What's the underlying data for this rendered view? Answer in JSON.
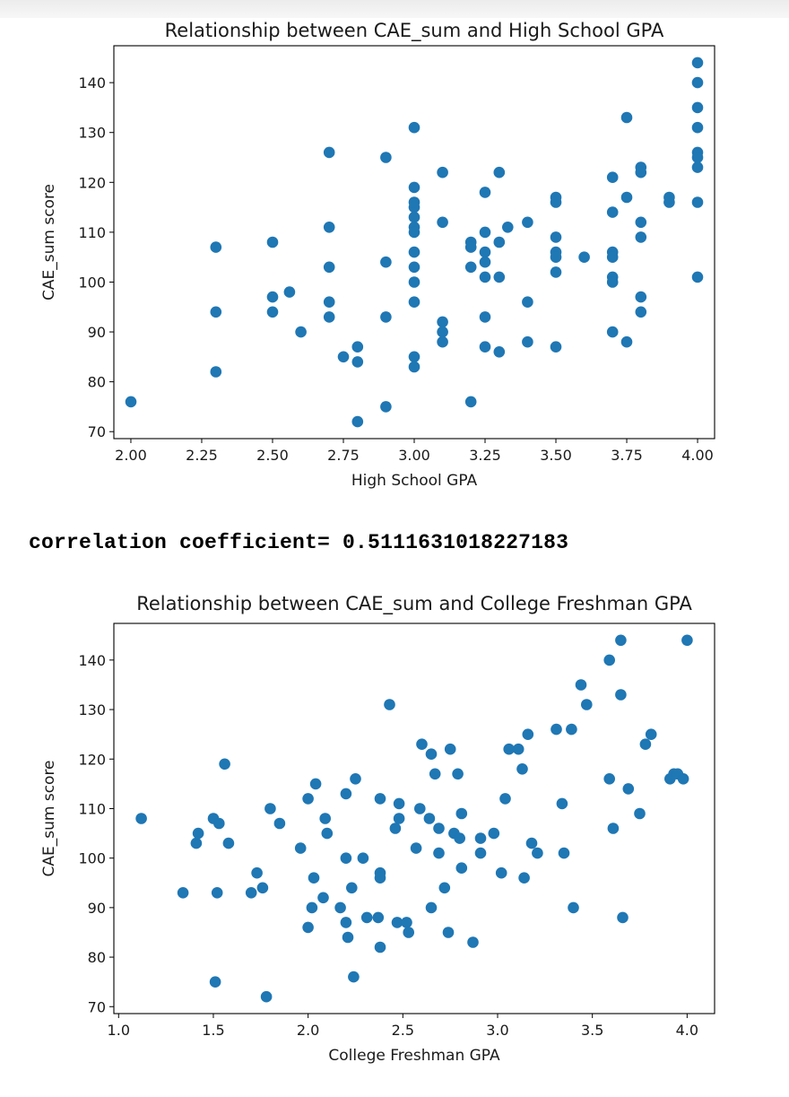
{
  "output_text": "correlation coefficient= 0.5111631018227183",
  "chart_data": [
    {
      "type": "scatter",
      "title": "Relationship between CAE_sum and High School GPA",
      "xlabel": "High School GPA",
      "ylabel": "CAE_sum score",
      "xlim": [
        1.94,
        4.06
      ],
      "ylim": [
        68.6,
        147.4
      ],
      "xticks": [
        2.0,
        2.25,
        2.5,
        2.75,
        3.0,
        3.25,
        3.5,
        3.75,
        4.0
      ],
      "xtick_labels": [
        "2.00",
        "2.25",
        "2.50",
        "2.75",
        "3.00",
        "3.25",
        "3.50",
        "3.75",
        "4.00"
      ],
      "yticks": [
        70,
        80,
        90,
        100,
        110,
        120,
        130,
        140
      ],
      "ytick_labels": [
        "70",
        "80",
        "90",
        "100",
        "110",
        "120",
        "130",
        "140"
      ],
      "grid": false,
      "marker_color": "#1f77b4",
      "points": [
        [
          2.0,
          76
        ],
        [
          2.3,
          107
        ],
        [
          2.3,
          94
        ],
        [
          2.3,
          82
        ],
        [
          2.5,
          108
        ],
        [
          2.5,
          97
        ],
        [
          2.5,
          94
        ],
        [
          2.56,
          98
        ],
        [
          2.6,
          90
        ],
        [
          2.7,
          126
        ],
        [
          2.7,
          111
        ],
        [
          2.7,
          103
        ],
        [
          2.7,
          96
        ],
        [
          2.7,
          93
        ],
        [
          2.75,
          85
        ],
        [
          2.8,
          87
        ],
        [
          2.8,
          84
        ],
        [
          2.8,
          72
        ],
        [
          2.9,
          125
        ],
        [
          2.9,
          104
        ],
        [
          2.9,
          93
        ],
        [
          2.9,
          75
        ],
        [
          3.0,
          131
        ],
        [
          3.0,
          119
        ],
        [
          3.0,
          116
        ],
        [
          3.0,
          115
        ],
        [
          3.0,
          113
        ],
        [
          3.0,
          111
        ],
        [
          3.0,
          110
        ],
        [
          3.0,
          106
        ],
        [
          3.0,
          103
        ],
        [
          3.0,
          100
        ],
        [
          3.0,
          96
        ],
        [
          3.0,
          85
        ],
        [
          3.0,
          83
        ],
        [
          3.1,
          122
        ],
        [
          3.1,
          112
        ],
        [
          3.1,
          92
        ],
        [
          3.1,
          90
        ],
        [
          3.1,
          88
        ],
        [
          3.2,
          108
        ],
        [
          3.2,
          107
        ],
        [
          3.2,
          103
        ],
        [
          3.2,
          76
        ],
        [
          3.25,
          118
        ],
        [
          3.25,
          110
        ],
        [
          3.25,
          106
        ],
        [
          3.25,
          104
        ],
        [
          3.25,
          101
        ],
        [
          3.25,
          93
        ],
        [
          3.25,
          87
        ],
        [
          3.3,
          122
        ],
        [
          3.3,
          108
        ],
        [
          3.3,
          101
        ],
        [
          3.3,
          86
        ],
        [
          3.33,
          111
        ],
        [
          3.4,
          112
        ],
        [
          3.4,
          96
        ],
        [
          3.4,
          88
        ],
        [
          3.5,
          117
        ],
        [
          3.5,
          116
        ],
        [
          3.5,
          109
        ],
        [
          3.5,
          106
        ],
        [
          3.5,
          105
        ],
        [
          3.5,
          102
        ],
        [
          3.5,
          87
        ],
        [
          3.6,
          105
        ],
        [
          3.7,
          121
        ],
        [
          3.7,
          114
        ],
        [
          3.7,
          106
        ],
        [
          3.7,
          105
        ],
        [
          3.7,
          101
        ],
        [
          3.7,
          100
        ],
        [
          3.7,
          90
        ],
        [
          3.75,
          133
        ],
        [
          3.75,
          117
        ],
        [
          3.75,
          88
        ],
        [
          3.8,
          123
        ],
        [
          3.8,
          122
        ],
        [
          3.8,
          112
        ],
        [
          3.8,
          109
        ],
        [
          3.8,
          97
        ],
        [
          3.8,
          94
        ],
        [
          3.9,
          117
        ],
        [
          3.9,
          116
        ],
        [
          4.0,
          144
        ],
        [
          4.0,
          140
        ],
        [
          4.0,
          135
        ],
        [
          4.0,
          131
        ],
        [
          4.0,
          126
        ],
        [
          4.0,
          125
        ],
        [
          4.0,
          123
        ],
        [
          4.0,
          116
        ],
        [
          4.0,
          101
        ]
      ]
    },
    {
      "type": "scatter",
      "title": "Relationship between CAE_sum and College Freshman GPA",
      "xlabel": "College Freshman GPA",
      "ylabel": "CAE_sum score",
      "xlim": [
        0.975,
        4.145
      ],
      "ylim": [
        68.6,
        147.4
      ],
      "xticks": [
        1.0,
        1.5,
        2.0,
        2.5,
        3.0,
        3.5,
        4.0
      ],
      "xtick_labels": [
        "1.0",
        "1.5",
        "2.0",
        "2.5",
        "3.0",
        "3.5",
        "4.0"
      ],
      "yticks": [
        70,
        80,
        90,
        100,
        110,
        120,
        130,
        140
      ],
      "ytick_labels": [
        "70",
        "80",
        "90",
        "100",
        "110",
        "120",
        "130",
        "140"
      ],
      "grid": false,
      "marker_color": "#1f77b4",
      "points": [
        [
          1.12,
          108
        ],
        [
          1.34,
          93
        ],
        [
          1.41,
          103
        ],
        [
          1.42,
          105
        ],
        [
          1.5,
          108
        ],
        [
          1.51,
          75
        ],
        [
          1.52,
          93
        ],
        [
          1.53,
          107
        ],
        [
          1.56,
          119
        ],
        [
          1.58,
          103
        ],
        [
          1.7,
          93
        ],
        [
          1.73,
          97
        ],
        [
          1.76,
          94
        ],
        [
          1.78,
          72
        ],
        [
          1.8,
          110
        ],
        [
          1.85,
          107
        ],
        [
          1.96,
          102
        ],
        [
          2.0,
          112
        ],
        [
          2.0,
          86
        ],
        [
          2.02,
          90
        ],
        [
          2.03,
          96
        ],
        [
          2.04,
          115
        ],
        [
          2.08,
          92
        ],
        [
          2.09,
          108
        ],
        [
          2.1,
          105
        ],
        [
          2.17,
          90
        ],
        [
          2.2,
          113
        ],
        [
          2.2,
          100
        ],
        [
          2.2,
          87
        ],
        [
          2.21,
          84
        ],
        [
          2.23,
          94
        ],
        [
          2.24,
          76
        ],
        [
          2.25,
          116
        ],
        [
          2.29,
          100
        ],
        [
          2.31,
          88
        ],
        [
          2.37,
          88
        ],
        [
          2.38,
          112
        ],
        [
          2.38,
          97
        ],
        [
          2.38,
          96
        ],
        [
          2.38,
          82
        ],
        [
          2.43,
          131
        ],
        [
          2.46,
          106
        ],
        [
          2.47,
          87
        ],
        [
          2.48,
          111
        ],
        [
          2.48,
          108
        ],
        [
          2.52,
          87
        ],
        [
          2.53,
          85
        ],
        [
          2.57,
          102
        ],
        [
          2.59,
          110
        ],
        [
          2.6,
          123
        ],
        [
          2.64,
          108
        ],
        [
          2.65,
          121
        ],
        [
          2.65,
          90
        ],
        [
          2.67,
          117
        ],
        [
          2.69,
          106
        ],
        [
          2.69,
          101
        ],
        [
          2.72,
          94
        ],
        [
          2.74,
          85
        ],
        [
          2.75,
          122
        ],
        [
          2.77,
          105
        ],
        [
          2.79,
          117
        ],
        [
          2.8,
          104
        ],
        [
          2.81,
          109
        ],
        [
          2.81,
          98
        ],
        [
          2.87,
          83
        ],
        [
          2.91,
          104
        ],
        [
          2.91,
          101
        ],
        [
          2.98,
          105
        ],
        [
          3.02,
          97
        ],
        [
          3.04,
          112
        ],
        [
          3.06,
          122
        ],
        [
          3.11,
          122
        ],
        [
          3.13,
          118
        ],
        [
          3.14,
          96
        ],
        [
          3.16,
          125
        ],
        [
          3.18,
          103
        ],
        [
          3.21,
          101
        ],
        [
          3.31,
          126
        ],
        [
          3.34,
          111
        ],
        [
          3.35,
          101
        ],
        [
          3.39,
          126
        ],
        [
          3.4,
          90
        ],
        [
          3.44,
          135
        ],
        [
          3.47,
          131
        ],
        [
          3.59,
          140
        ],
        [
          3.59,
          116
        ],
        [
          3.61,
          106
        ],
        [
          3.65,
          144
        ],
        [
          3.65,
          133
        ],
        [
          3.66,
          88
        ],
        [
          3.69,
          114
        ],
        [
          3.75,
          109
        ],
        [
          3.78,
          123
        ],
        [
          3.81,
          125
        ],
        [
          3.91,
          116
        ],
        [
          3.93,
          117
        ],
        [
          3.95,
          117
        ],
        [
          3.98,
          116
        ],
        [
          4.0,
          144
        ]
      ]
    }
  ]
}
